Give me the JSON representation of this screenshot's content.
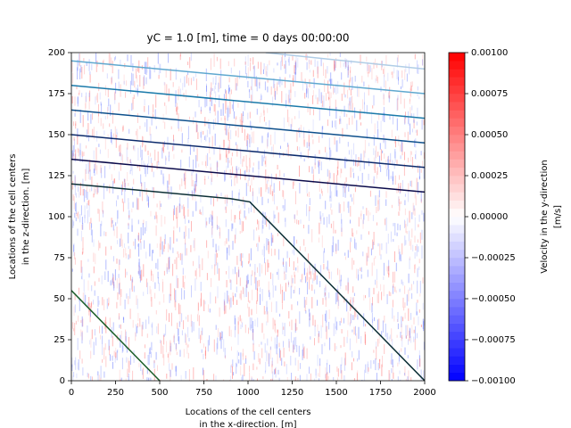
{
  "chart_data": {
    "type": "line",
    "title": "yC = 1.0 [m], time = 0 days 00:00:00",
    "xlabel": [
      "Locations of the cell centers",
      "in the x-direction. [m]"
    ],
    "ylabel": [
      "Locations of the cell centers",
      "in the z-direction. [m]"
    ],
    "xlim": [
      0,
      2000
    ],
    "ylim": [
      0,
      200
    ],
    "xticks": [
      0,
      250,
      500,
      750,
      1000,
      1250,
      1500,
      1750,
      2000
    ],
    "yticks": [
      0,
      25,
      50,
      75,
      100,
      125,
      150,
      175,
      200
    ],
    "series": [
      {
        "color": "#1b5e2a",
        "x": [
          0,
          500
        ],
        "values": [
          55,
          0
        ]
      },
      {
        "color": "#0b2e35",
        "x": [
          0,
          900,
          1010,
          2000
        ],
        "values": [
          120,
          111,
          109,
          0
        ]
      },
      {
        "color": "#0a0a4a",
        "x": [
          0,
          2000
        ],
        "values": [
          135,
          115
        ]
      },
      {
        "color": "#0c2a6b",
        "x": [
          0,
          2000
        ],
        "values": [
          150,
          130
        ]
      },
      {
        "color": "#0d4f8b",
        "x": [
          0,
          2000
        ],
        "values": [
          165,
          145
        ]
      },
      {
        "color": "#1a7aaa",
        "x": [
          0,
          2000
        ],
        "values": [
          180,
          160
        ]
      },
      {
        "color": "#5fa8cf",
        "x": [
          0,
          2000
        ],
        "values": [
          195,
          175
        ]
      },
      {
        "color": "#b0cde6",
        "x": [
          1100,
          2000
        ],
        "values": [
          200,
          190
        ]
      }
    ],
    "colorbar": {
      "label": [
        "Velocity in the y-direction",
        "[m/s]"
      ],
      "lim": [
        -0.001,
        0.001
      ],
      "ticks": [
        {
          "value": -0.001,
          "label": "−0.00100"
        },
        {
          "value": -0.00075,
          "label": "−0.00075"
        },
        {
          "value": -0.0005,
          "label": "−0.00050"
        },
        {
          "value": -0.00025,
          "label": "−0.00025"
        },
        {
          "value": 0,
          "label": "0.00000"
        },
        {
          "value": 0.00025,
          "label": "0.00025"
        },
        {
          "value": 0.0005,
          "label": "0.00050"
        },
        {
          "value": 0.00075,
          "label": "0.00075"
        },
        {
          "value": 0.001,
          "label": "0.00100"
        }
      ]
    }
  }
}
